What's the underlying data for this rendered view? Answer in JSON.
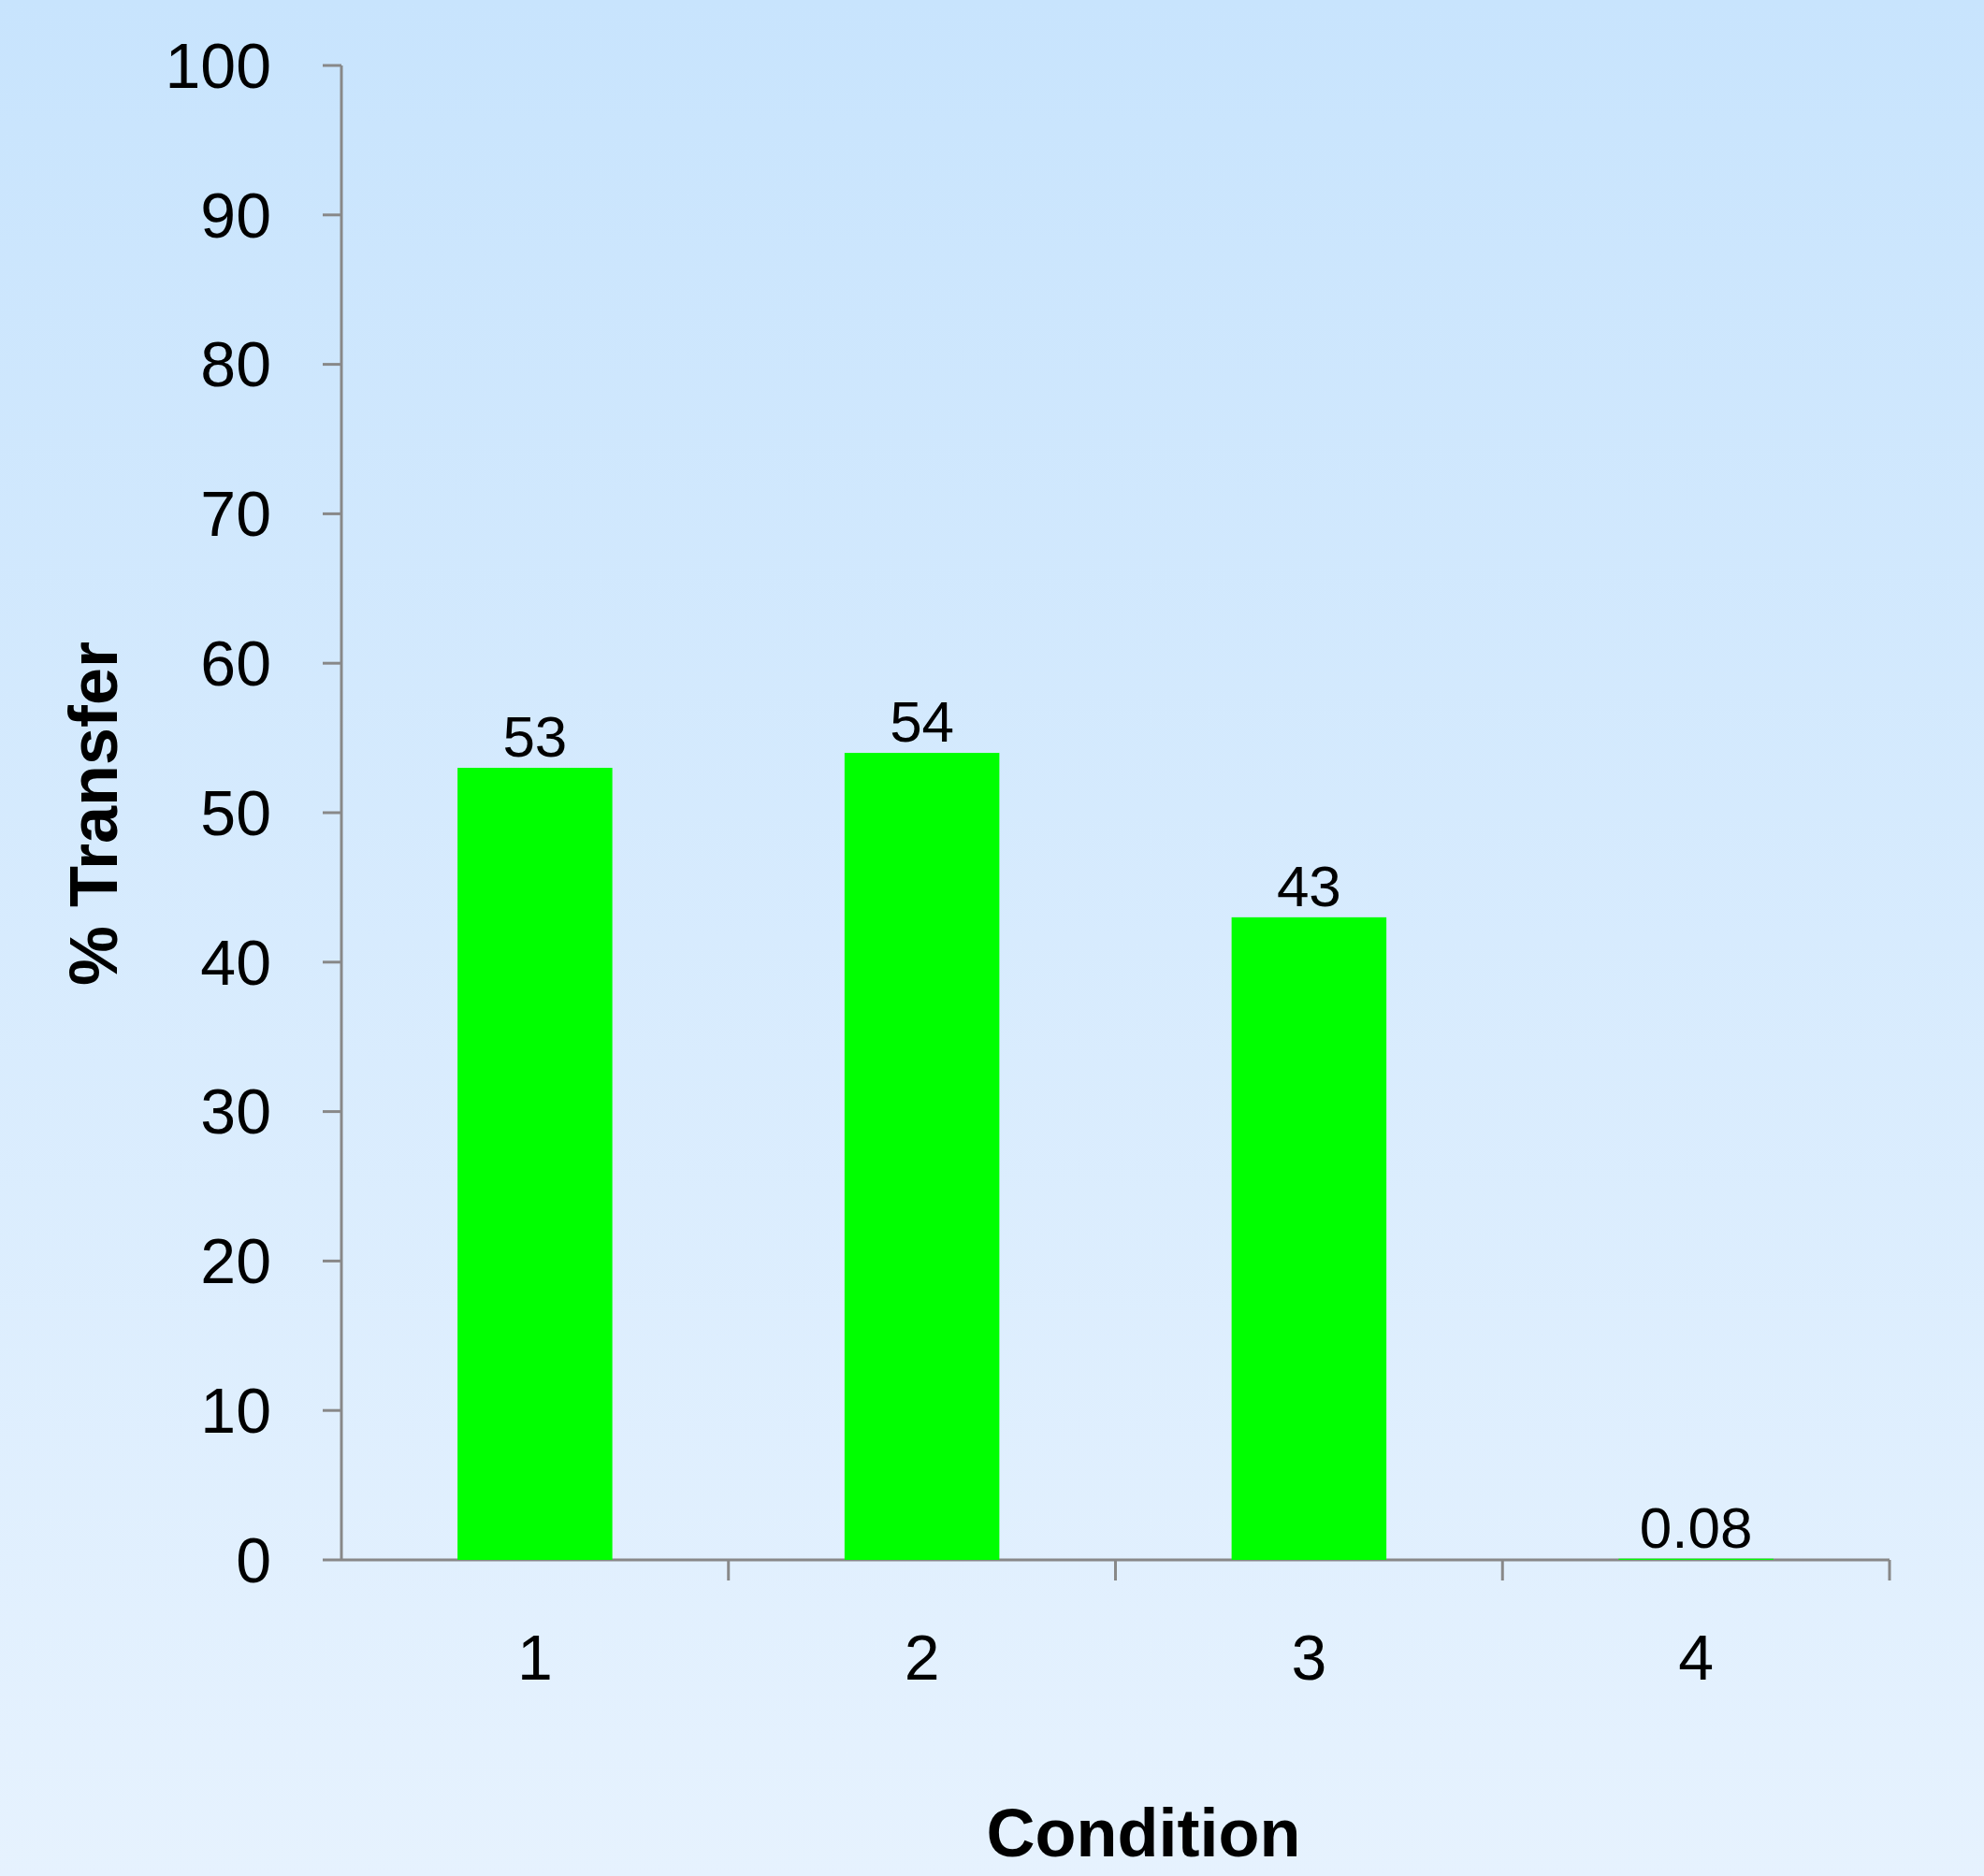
{
  "chart_data": {
    "type": "bar",
    "xlabel": "Condition",
    "ylabel": "% Transfer",
    "categories": [
      "1",
      "2",
      "3",
      "4"
    ],
    "values": [
      53,
      54,
      43,
      0.08
    ],
    "color": "#00ff00",
    "ylim": [
      0,
      100
    ],
    "yticks": [
      0,
      10,
      20,
      30,
      40,
      50,
      60,
      70,
      80,
      90,
      100
    ],
    "data_labels": true
  }
}
